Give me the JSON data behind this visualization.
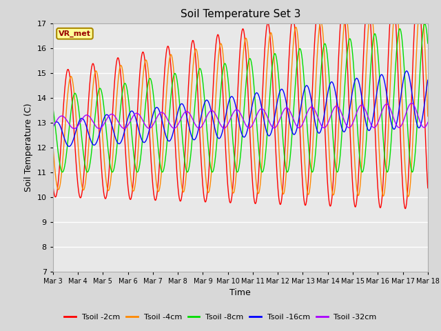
{
  "title": "Soil Temperature Set 3",
  "xlabel": "Time",
  "ylabel": "Soil Temperature (C)",
  "ylim": [
    7.0,
    17.0
  ],
  "yticks": [
    7.0,
    8.0,
    9.0,
    10.0,
    11.0,
    12.0,
    13.0,
    14.0,
    15.0,
    16.0,
    17.0
  ],
  "xtick_labels": [
    "Mar 3",
    "Mar 4",
    "Mar 5",
    "Mar 6",
    "Mar 7",
    "Mar 8",
    "Mar 9",
    "Mar 10",
    "Mar 11",
    "Mar 12",
    "Mar 13",
    "Mar 14",
    "Mar 15",
    "Mar 16",
    "Mar 17",
    "Mar 18"
  ],
  "legend_label": "VR_met",
  "series_colors": [
    "#ff0000",
    "#ff8800",
    "#00dd00",
    "#0000ff",
    "#aa00ff"
  ],
  "series_labels": [
    "Tsoil -2cm",
    "Tsoil -4cm",
    "Tsoil -8cm",
    "Tsoil -16cm",
    "Tsoil -32cm"
  ],
  "bg_color": "#d8d8d8",
  "plot_bg": "#e8e8e8",
  "n_points": 1500
}
